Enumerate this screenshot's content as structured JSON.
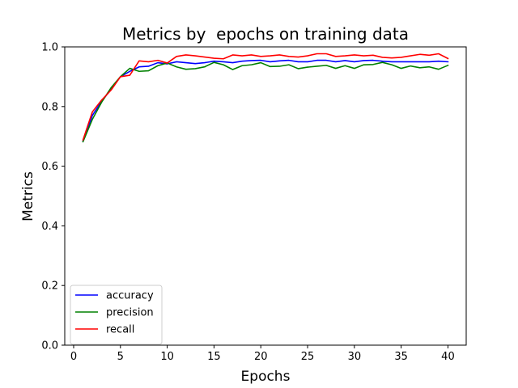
{
  "chart_data": {
    "type": "line",
    "title": "Metrics by  epochs on training data",
    "xlabel": "Epochs",
    "ylabel": "Metrics",
    "xlim": [
      -0.95,
      41.95
    ],
    "ylim": [
      0.0,
      1.0
    ],
    "xticks": [
      0,
      5,
      10,
      15,
      20,
      25,
      30,
      35,
      40
    ],
    "yticks": [
      0.0,
      0.2,
      0.4,
      0.6,
      0.8,
      1.0
    ],
    "xtick_labels": [
      "0",
      "5",
      "10",
      "15",
      "20",
      "25",
      "30",
      "35",
      "40"
    ],
    "ytick_labels": [
      "0.0",
      "0.2",
      "0.4",
      "0.6",
      "0.8",
      "1.0"
    ],
    "grid": false,
    "legend_position": "lower-left",
    "x": [
      1,
      2,
      3,
      4,
      5,
      6,
      7,
      8,
      9,
      10,
      11,
      12,
      13,
      14,
      15,
      16,
      17,
      18,
      19,
      20,
      21,
      22,
      23,
      24,
      25,
      26,
      27,
      28,
      29,
      30,
      31,
      32,
      33,
      34,
      35,
      36,
      37,
      38,
      39,
      40
    ],
    "series": [
      {
        "name": "accuracy",
        "color": "#0000ff",
        "values": [
          0.684,
          0.77,
          0.818,
          0.858,
          0.9,
          0.918,
          0.933,
          0.935,
          0.947,
          0.943,
          0.95,
          0.947,
          0.944,
          0.947,
          0.952,
          0.95,
          0.947,
          0.952,
          0.954,
          0.955,
          0.95,
          0.953,
          0.955,
          0.95,
          0.95,
          0.955,
          0.955,
          0.95,
          0.954,
          0.95,
          0.954,
          0.955,
          0.952,
          0.95,
          0.95,
          0.95,
          0.95,
          0.95,
          0.952,
          0.95
        ]
      },
      {
        "name": "precision",
        "color": "#008000",
        "values": [
          0.682,
          0.757,
          0.815,
          0.863,
          0.9,
          0.928,
          0.918,
          0.92,
          0.937,
          0.946,
          0.933,
          0.925,
          0.927,
          0.933,
          0.948,
          0.94,
          0.924,
          0.937,
          0.94,
          0.947,
          0.934,
          0.935,
          0.94,
          0.927,
          0.932,
          0.935,
          0.938,
          0.928,
          0.937,
          0.928,
          0.94,
          0.941,
          0.948,
          0.94,
          0.928,
          0.936,
          0.93,
          0.933,
          0.925,
          0.938
        ]
      },
      {
        "name": "recall",
        "color": "#ff0000",
        "values": [
          0.688,
          0.782,
          0.822,
          0.855,
          0.9,
          0.905,
          0.953,
          0.95,
          0.955,
          0.946,
          0.968,
          0.973,
          0.97,
          0.966,
          0.962,
          0.96,
          0.973,
          0.97,
          0.973,
          0.968,
          0.97,
          0.973,
          0.968,
          0.966,
          0.97,
          0.977,
          0.977,
          0.968,
          0.97,
          0.973,
          0.97,
          0.972,
          0.965,
          0.963,
          0.965,
          0.97,
          0.975,
          0.972,
          0.977,
          0.961
        ]
      }
    ]
  }
}
